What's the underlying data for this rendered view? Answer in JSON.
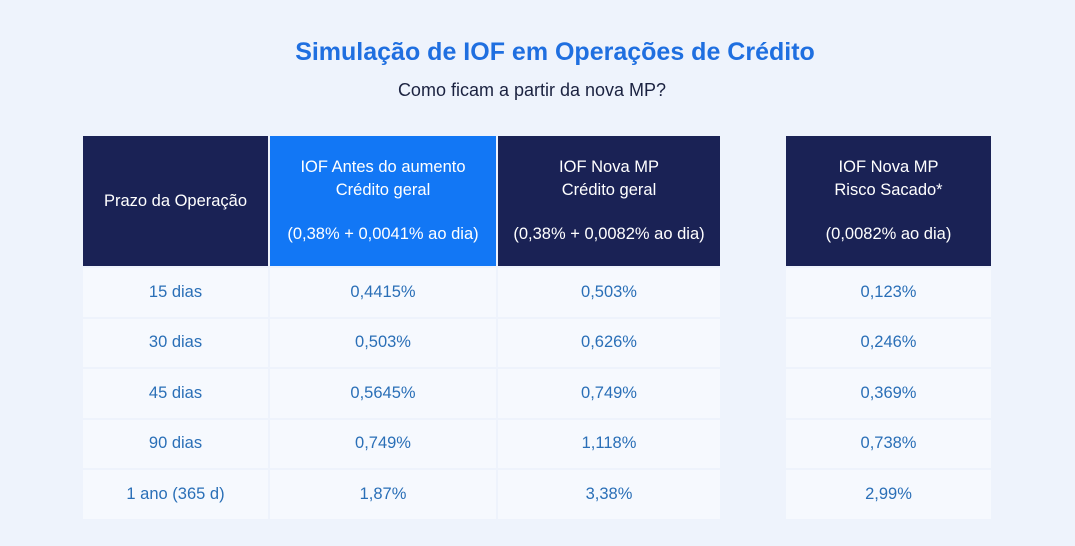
{
  "title": "Simulação de IOF em Operações de Crédito",
  "subtitle": "Como ficam a partir da nova MP?",
  "chart_data": {
    "type": "table",
    "columns": [
      {
        "lines": [
          "Prazo da Operação"
        ],
        "note": ""
      },
      {
        "lines": [
          "IOF Antes do aumento",
          "Crédito geral"
        ],
        "note": "(0,38% + 0,0041% ao dia)"
      },
      {
        "lines": [
          "IOF Nova MP",
          "Crédito geral"
        ],
        "note": "(0,38% + 0,0082% ao dia)"
      },
      {
        "lines": [
          "IOF Nova MP",
          "Risco Sacado*"
        ],
        "note": "(0,0082% ao dia)"
      }
    ],
    "rows": [
      [
        "15 dias",
        "0,4415%",
        "0,503%",
        "0,123%"
      ],
      [
        "30 dias",
        "0,503%",
        "0,626%",
        "0,246%"
      ],
      [
        "45 dias",
        "0,5645%",
        "0,749%",
        "0,369%"
      ],
      [
        "90 dias",
        "0,749%",
        "1,118%",
        "0,738%"
      ],
      [
        "1 ano (365 d)",
        "1,87%",
        "3,38%",
        "2,99%"
      ]
    ],
    "colors": {
      "header_dark": "#1a2255",
      "header_highlight": "#1277f5",
      "title": "#1f6fe0",
      "cell_text": "#2a6fb7",
      "cell_bg": "#f6f9fe",
      "page_bg": "#eef3fc"
    }
  }
}
